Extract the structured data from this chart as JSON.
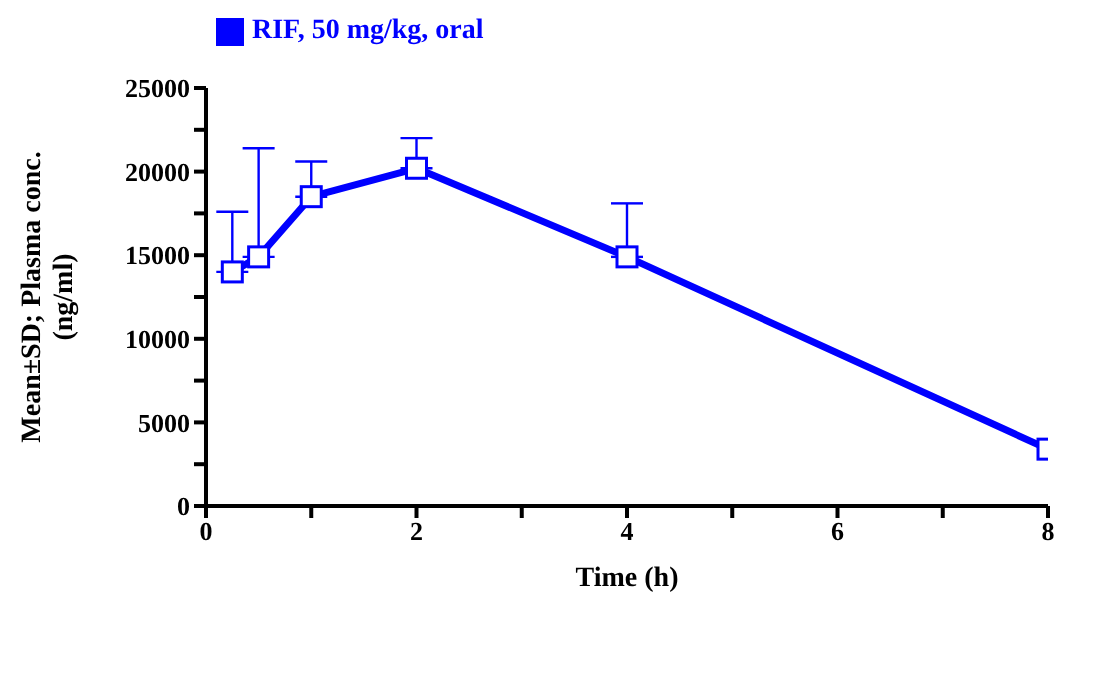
{
  "chart_data": {
    "type": "line",
    "xlabel": "Time (h)",
    "ylabel": "Mean±SD; Plasma conc. (ng/ml)",
    "x": [
      0.25,
      0.5,
      1,
      2,
      4,
      8
    ],
    "series": [
      {
        "name": "RIF, 50 mg/kg, oral",
        "color": "#0000ff",
        "values": [
          14000,
          14900,
          18500,
          20200,
          14900,
          3400
        ],
        "errors": [
          [
            14000,
            17600
          ],
          [
            14900,
            21400
          ],
          [
            18500,
            20600
          ],
          [
            20200,
            22000
          ],
          [
            14900,
            18100
          ],
          null
        ]
      }
    ],
    "xlim": [
      0,
      8
    ],
    "xticks": [
      0,
      {
        "value": 1,
        "label": null
      },
      2,
      {
        "value": 3,
        "label": null
      },
      4,
      {
        "value": 5,
        "label": null
      },
      6,
      {
        "value": 7,
        "label": null
      },
      8
    ],
    "ylim": [
      0,
      25000
    ],
    "yticks": [
      0,
      {
        "value": 2500,
        "label": null
      },
      5000,
      {
        "value": 7500,
        "label": null
      },
      10000,
      {
        "value": 12500,
        "label": null
      },
      15000,
      {
        "value": 17500,
        "label": null
      },
      20000,
      {
        "value": 22500,
        "label": null
      },
      25000
    ],
    "grid": false,
    "legend": "top left",
    "marker": "square",
    "line_style": "solid"
  }
}
